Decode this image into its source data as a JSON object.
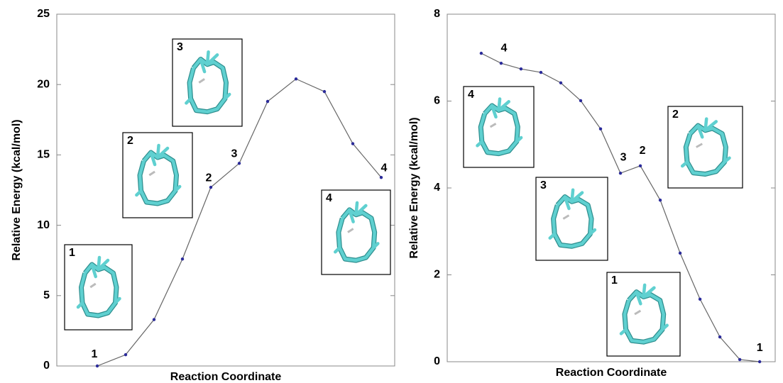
{
  "chart_data": [
    {
      "type": "line",
      "y_label": "Relative Energy (kcal/mol)",
      "x_label": "Reaction Coordinate",
      "x": [
        1,
        2,
        3,
        4,
        5,
        6,
        7,
        8,
        9,
        10,
        11
      ],
      "xlim": [
        -0.425,
        11.475
      ],
      "values": [
        0,
        0.8,
        3.3,
        7.6,
        12.7,
        14.4,
        18.8,
        20.4,
        19.5,
        15.8,
        13.4
      ],
      "point_labels": [
        "1",
        null,
        null,
        null,
        "2",
        "3",
        null,
        null,
        null,
        null,
        "4"
      ],
      "insets": [
        "1",
        "2",
        "3",
        "4"
      ],
      "ylim": [
        0,
        25
      ],
      "yticks": [
        0,
        5,
        10,
        15,
        20,
        25
      ],
      "line_color": "#666666",
      "marker_color": "#2b2b9a"
    },
    {
      "type": "line",
      "y_label": "Relative Energy (kcal/mol)",
      "x_label": "Reaction Coordinate",
      "x": [
        1,
        2,
        3,
        4,
        5,
        6,
        7,
        8,
        9,
        10,
        11,
        12,
        13,
        14,
        15
      ],
      "xlim": [
        -0.71,
        15.78
      ],
      "values": [
        7.1,
        6.87,
        6.74,
        6.66,
        6.42,
        6.01,
        5.36,
        4.34,
        4.51,
        3.72,
        2.5,
        1.44,
        0.57,
        0.05,
        0
      ],
      "point_labels": [
        "4",
        null,
        null,
        null,
        null,
        null,
        null,
        "3",
        "2",
        null,
        null,
        null,
        null,
        null,
        "1"
      ],
      "insets": [
        "4",
        "3",
        "2",
        "1"
      ],
      "ylim": [
        0,
        8
      ],
      "yticks": [
        0,
        2,
        4,
        6,
        8
      ],
      "line_color": "#666666",
      "marker_color": "#2b2b9a"
    }
  ]
}
